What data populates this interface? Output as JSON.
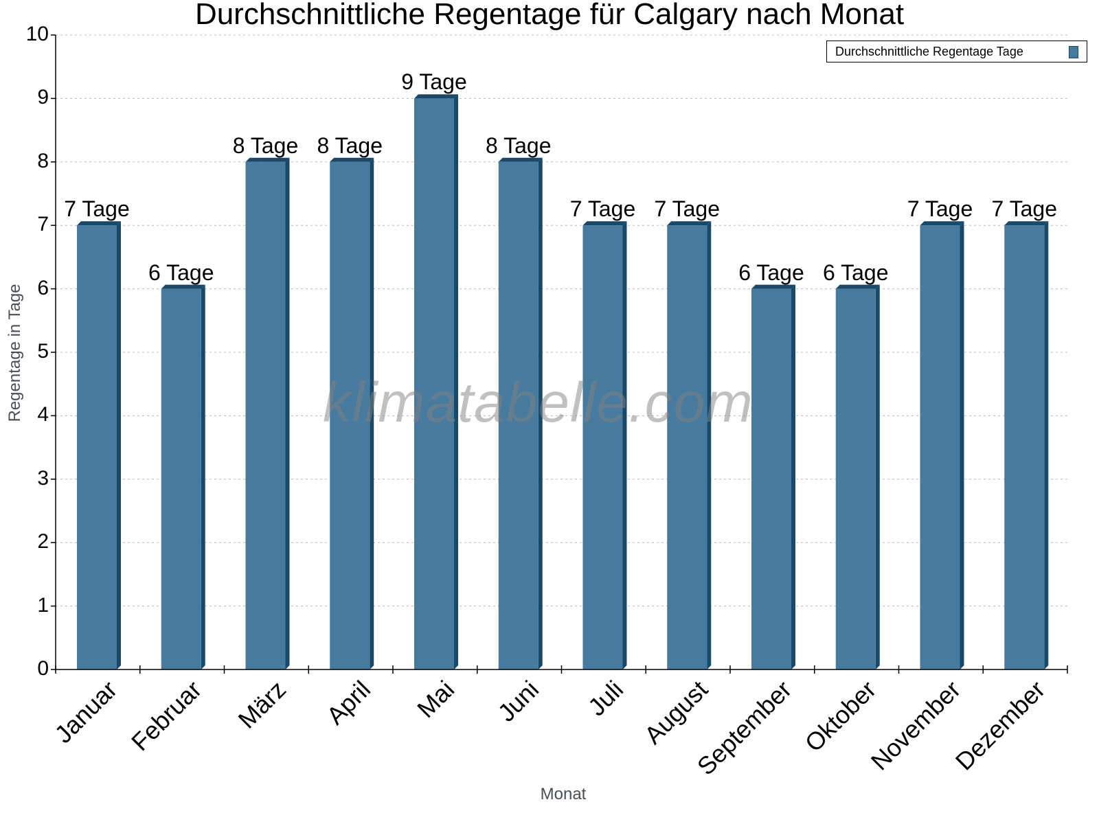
{
  "chart_data": {
    "type": "bar",
    "title": "Durchschnittliche Regentage für Calgary nach Monat",
    "xlabel": "Monat",
    "ylabel": "Regentage in Tage",
    "categories": [
      "Januar",
      "Februar",
      "März",
      "April",
      "Mai",
      "Juni",
      "Juli",
      "August",
      "September",
      "Oktober",
      "November",
      "Dezember"
    ],
    "series": [
      {
        "name": "Durchschnittliche Regentage Tage",
        "values": [
          7,
          6,
          8,
          8,
          9,
          8,
          7,
          7,
          6,
          6,
          7,
          7
        ],
        "data_labels": [
          "7 Tage",
          "6 Tage",
          "8 Tage",
          "8 Tage",
          "9 Tage",
          "8 Tage",
          "7 Tage",
          "7 Tage",
          "6 Tage",
          "6 Tage",
          "7 Tage",
          "7 Tage"
        ],
        "color": "#467a9e",
        "side_color": "#1a4868"
      }
    ],
    "ylim": [
      0,
      10
    ],
    "yticks": [
      0,
      1,
      2,
      3,
      4,
      5,
      6,
      7,
      8,
      9,
      10
    ],
    "grid": true,
    "legend_position": "top-right"
  },
  "watermark": "klimatabelle.com"
}
